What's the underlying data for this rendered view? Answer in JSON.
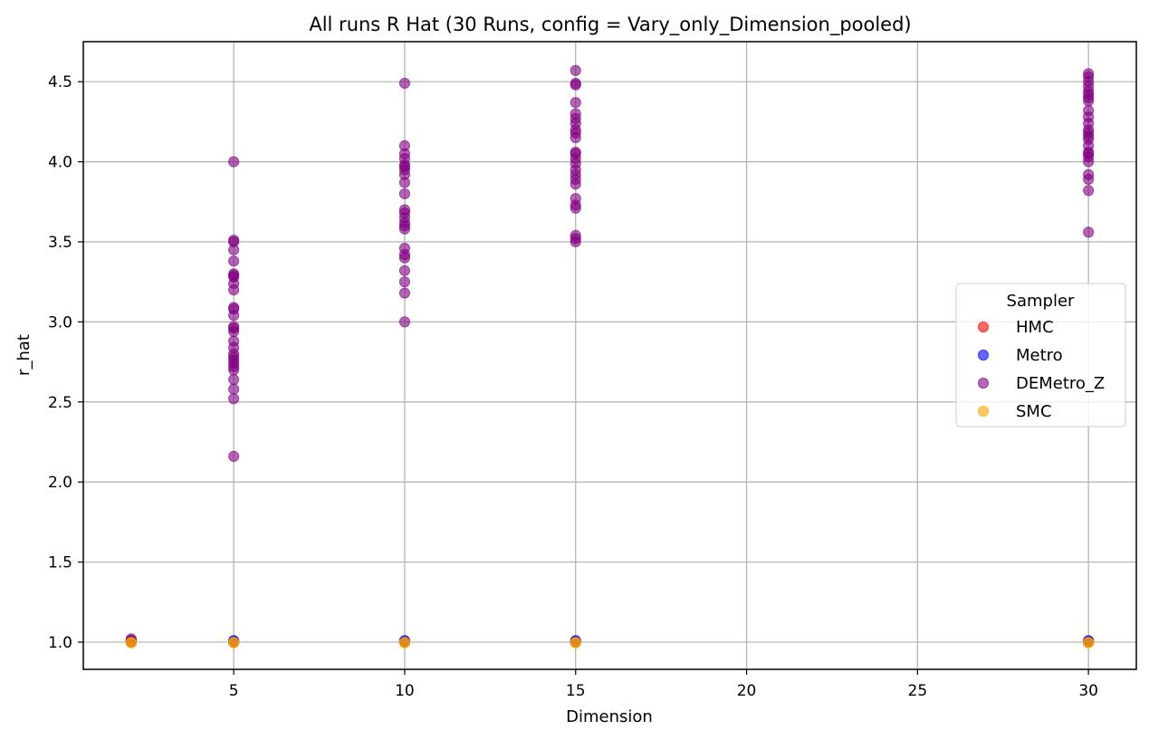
{
  "chart_data": {
    "type": "scatter",
    "title": "All runs R Hat (30 Runs, config = Vary_only_Dimension_pooled)",
    "xlabel": "Dimension",
    "ylabel": "r_hat",
    "xlim": [
      0.6,
      31.4
    ],
    "ylim": [
      0.83,
      4.75
    ],
    "xticks": [
      5,
      10,
      15,
      20,
      25,
      30
    ],
    "yticks": [
      1.0,
      1.5,
      2.0,
      2.5,
      3.0,
      3.5,
      4.0,
      4.5
    ],
    "xtick_labels": [
      "5",
      "10",
      "15",
      "20",
      "25",
      "30"
    ],
    "ytick_labels": [
      "1.0",
      "1.5",
      "2.0",
      "2.5",
      "3.0",
      "3.5",
      "4.0",
      "4.5"
    ],
    "grid": true,
    "legend": {
      "title": "Sampler",
      "placement": "center-right"
    },
    "series": [
      {
        "name": "HMC",
        "color": "#ff0000",
        "points": [
          [
            2,
            1.0
          ],
          [
            2,
            1.0
          ],
          [
            5,
            1.0
          ],
          [
            5,
            1.0
          ],
          [
            10,
            1.0
          ],
          [
            10,
            1.0
          ],
          [
            15,
            1.0
          ],
          [
            15,
            1.0
          ],
          [
            30,
            1.0
          ],
          [
            30,
            1.0
          ]
        ]
      },
      {
        "name": "Metro",
        "color": "#0000ff",
        "points": [
          [
            2,
            1.01
          ],
          [
            2,
            1.005
          ],
          [
            5,
            1.01
          ],
          [
            5,
            1.005
          ],
          [
            10,
            1.01
          ],
          [
            10,
            1.005
          ],
          [
            15,
            1.01
          ],
          [
            15,
            1.005
          ],
          [
            30,
            1.01
          ],
          [
            30,
            1.005
          ]
        ]
      },
      {
        "name": "DEMetro_Z",
        "color": "#800080",
        "points": [
          [
            2,
            1.02
          ],
          [
            2,
            1.01
          ],
          [
            5,
            2.16
          ],
          [
            5,
            2.52
          ],
          [
            5,
            2.58
          ],
          [
            5,
            2.64
          ],
          [
            5,
            2.7
          ],
          [
            5,
            2.72
          ],
          [
            5,
            2.74
          ],
          [
            5,
            2.76
          ],
          [
            5,
            2.78
          ],
          [
            5,
            2.8
          ],
          [
            5,
            2.84
          ],
          [
            5,
            2.88
          ],
          [
            5,
            2.94
          ],
          [
            5,
            2.96
          ],
          [
            5,
            2.97
          ],
          [
            5,
            3.04
          ],
          [
            5,
            3.08
          ],
          [
            5,
            3.09
          ],
          [
            5,
            3.2
          ],
          [
            5,
            3.24
          ],
          [
            5,
            3.28
          ],
          [
            5,
            3.29
          ],
          [
            5,
            3.3
          ],
          [
            5,
            3.38
          ],
          [
            5,
            3.45
          ],
          [
            5,
            3.5
          ],
          [
            5,
            3.51
          ],
          [
            5,
            4.0
          ],
          [
            10,
            3.0
          ],
          [
            10,
            3.18
          ],
          [
            10,
            3.25
          ],
          [
            10,
            3.32
          ],
          [
            10,
            3.4
          ],
          [
            10,
            3.42
          ],
          [
            10,
            3.46
          ],
          [
            10,
            3.58
          ],
          [
            10,
            3.6
          ],
          [
            10,
            3.62
          ],
          [
            10,
            3.65
          ],
          [
            10,
            3.68
          ],
          [
            10,
            3.7
          ],
          [
            10,
            3.8
          ],
          [
            10,
            3.87
          ],
          [
            10,
            3.92
          ],
          [
            10,
            3.95
          ],
          [
            10,
            3.97
          ],
          [
            10,
            3.98
          ],
          [
            10,
            4.02
          ],
          [
            10,
            4.05
          ],
          [
            10,
            4.1
          ],
          [
            10,
            4.49
          ],
          [
            15,
            3.5
          ],
          [
            15,
            3.52
          ],
          [
            15,
            3.54
          ],
          [
            15,
            3.71
          ],
          [
            15,
            3.73
          ],
          [
            15,
            3.77
          ],
          [
            15,
            3.86
          ],
          [
            15,
            3.89
          ],
          [
            15,
            3.92
          ],
          [
            15,
            3.95
          ],
          [
            15,
            3.99
          ],
          [
            15,
            4.02
          ],
          [
            15,
            4.05
          ],
          [
            15,
            4.06
          ],
          [
            15,
            4.15
          ],
          [
            15,
            4.18
          ],
          [
            15,
            4.2
          ],
          [
            15,
            4.24
          ],
          [
            15,
            4.27
          ],
          [
            15,
            4.3
          ],
          [
            15,
            4.37
          ],
          [
            15,
            4.48
          ],
          [
            15,
            4.49
          ],
          [
            15,
            4.57
          ],
          [
            30,
            3.56
          ],
          [
            30,
            3.82
          ],
          [
            30,
            3.89
          ],
          [
            30,
            3.92
          ],
          [
            30,
            4.0
          ],
          [
            30,
            4.03
          ],
          [
            30,
            4.05
          ],
          [
            30,
            4.06
          ],
          [
            30,
            4.1
          ],
          [
            30,
            4.14
          ],
          [
            30,
            4.16
          ],
          [
            30,
            4.18
          ],
          [
            30,
            4.2
          ],
          [
            30,
            4.24
          ],
          [
            30,
            4.28
          ],
          [
            30,
            4.32
          ],
          [
            30,
            4.38
          ],
          [
            30,
            4.4
          ],
          [
            30,
            4.42
          ],
          [
            30,
            4.44
          ],
          [
            30,
            4.47
          ],
          [
            30,
            4.5
          ],
          [
            30,
            4.53
          ],
          [
            30,
            4.55
          ]
        ]
      },
      {
        "name": "SMC",
        "color": "#ffa500",
        "points": [
          [
            2,
            1.0
          ],
          [
            2,
            0.995
          ],
          [
            5,
            1.0
          ],
          [
            5,
            0.995
          ],
          [
            10,
            1.0
          ],
          [
            10,
            0.995
          ],
          [
            15,
            1.0
          ],
          [
            15,
            0.995
          ],
          [
            30,
            1.0
          ],
          [
            30,
            0.995
          ]
        ]
      }
    ]
  }
}
